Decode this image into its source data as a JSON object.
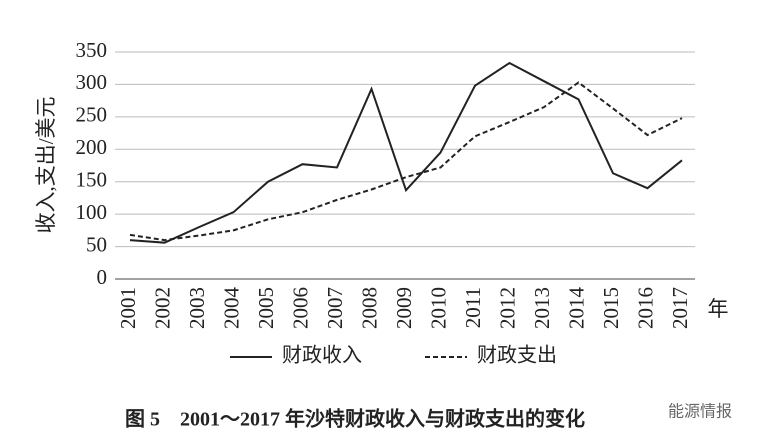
{
  "chart_data": {
    "type": "line",
    "y_label": "收入,支出/美元",
    "x_label": "年",
    "caption": "图 5　2001～2017 年沙特财政收入与财政支出的变化",
    "watermark": "能源情报",
    "categories": [
      "2001",
      "2002",
      "2003",
      "2004",
      "2005",
      "2006",
      "2007",
      "2008",
      "2009",
      "2010",
      "2011",
      "2012",
      "2013",
      "2014",
      "2015",
      "2016",
      "2017"
    ],
    "series": [
      {
        "name": "财政收入",
        "color": "#222222",
        "line_style": "solid",
        "values": [
          60,
          56,
          80,
          103,
          150,
          177,
          172,
          293,
          137,
          195,
          298,
          333,
          305,
          277,
          163,
          140,
          183
        ]
      },
      {
        "name": "财政支出",
        "color": "#222222",
        "line_style": "dashed",
        "values": [
          68,
          60,
          67,
          75,
          92,
          103,
          122,
          138,
          157,
          172,
          220,
          242,
          265,
          303,
          263,
          222,
          248
        ]
      }
    ],
    "ylim": [
      0,
      350
    ],
    "yticks": [
      0,
      50,
      100,
      150,
      200,
      250,
      300,
      350
    ],
    "grid": true
  }
}
